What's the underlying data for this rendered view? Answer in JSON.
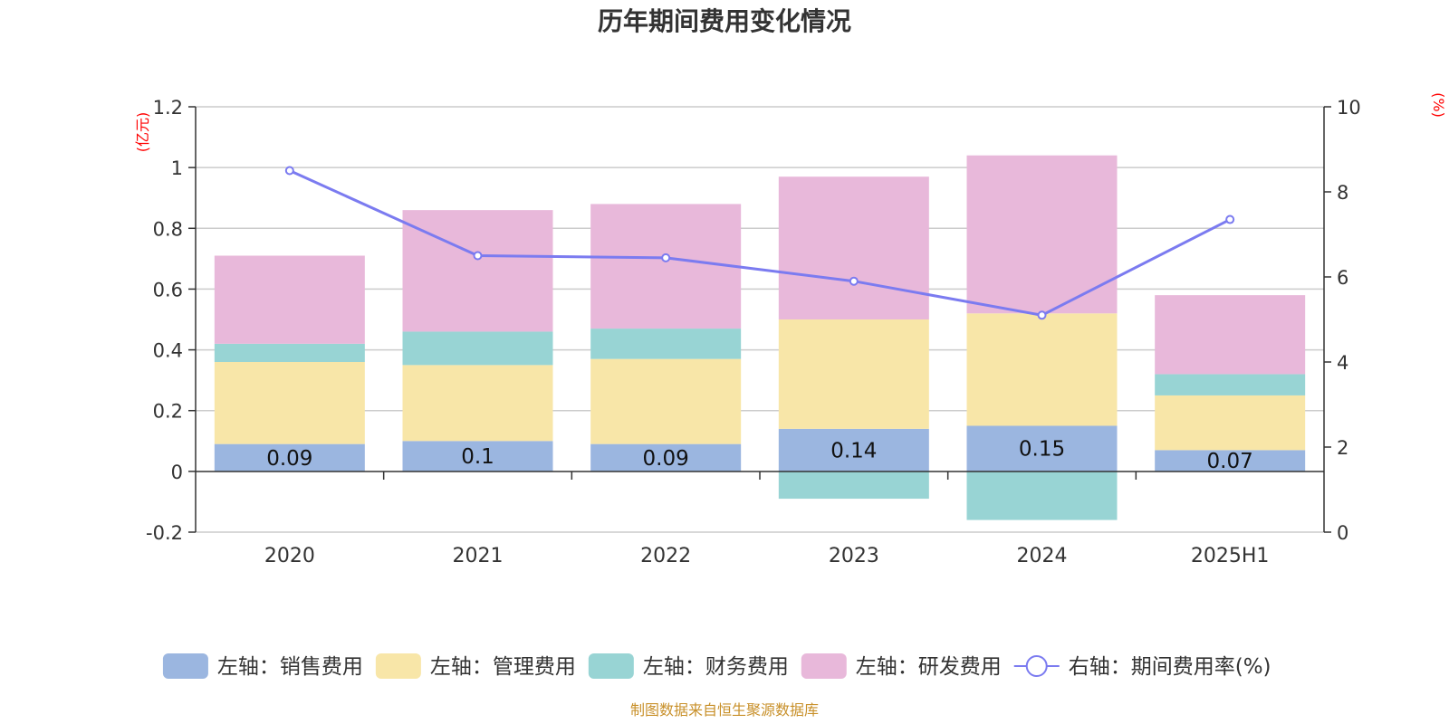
{
  "chart_data": {
    "type": "bar",
    "title": "历年期间费用变化情况",
    "categories": [
      "2020",
      "2021",
      "2022",
      "2023",
      "2024",
      "2025H1"
    ],
    "series": [
      {
        "name": "左轴：销售费用",
        "axis": "left",
        "type": "bar",
        "color": "#9bb6e0",
        "values": [
          0.09,
          0.1,
          0.09,
          0.14,
          0.15,
          0.07
        ],
        "labels": [
          "0.09",
          "0.1",
          "0.09",
          "0.14",
          "0.15",
          "0.07"
        ]
      },
      {
        "name": "左轴：管理费用",
        "axis": "left",
        "type": "bar",
        "color": "#f8e6a8",
        "values": [
          0.27,
          0.25,
          0.28,
          0.36,
          0.37,
          0.18
        ]
      },
      {
        "name": "左轴：财务费用",
        "axis": "left",
        "type": "bar",
        "color": "#98d4d4",
        "values": [
          0.06,
          0.11,
          0.1,
          -0.09,
          -0.16,
          0.07
        ]
      },
      {
        "name": "左轴：研发费用",
        "axis": "left",
        "type": "bar",
        "color": "#e8b8da",
        "values": [
          0.29,
          0.4,
          0.41,
          0.47,
          0.52,
          0.26
        ]
      },
      {
        "name": "右轴：期间费用率(%)",
        "axis": "right",
        "type": "line",
        "color": "#7b7bf0",
        "values": [
          8.5,
          6.5,
          6.45,
          5.9,
          5.1,
          7.35
        ]
      }
    ],
    "left_axis": {
      "unit": "(亿元)",
      "ylim": [
        -0.2,
        1.2
      ],
      "ticks": [
        -0.2,
        0,
        0.2,
        0.4,
        0.6,
        0.8,
        1,
        1.2
      ],
      "tick_labels": [
        "-0.2",
        "0",
        "0.2",
        "0.4",
        "0.6",
        "0.8",
        "1",
        "1.2"
      ]
    },
    "right_axis": {
      "unit": "(%)",
      "ylim": [
        0,
        10
      ],
      "ticks": [
        0,
        2,
        4,
        6,
        8,
        10
      ],
      "tick_labels": [
        "0",
        "2",
        "4",
        "6",
        "8",
        "10"
      ]
    },
    "grid": true,
    "legend_position": "bottom",
    "source": "制图数据来自恒生聚源数据库",
    "unit_color": "#ff0000",
    "source_color": "#c8902a"
  }
}
